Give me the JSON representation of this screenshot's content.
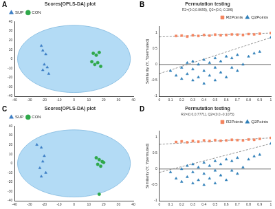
{
  "chart_data": [
    {
      "panel": "A",
      "type": "scatter",
      "title": "Scores(OPLS-DA) plot",
      "legend": "top-left",
      "grid": false,
      "xlim": [
        -40,
        40
      ],
      "xticks": [
        -40,
        -30,
        -20,
        -10,
        0,
        10,
        20,
        30,
        40
      ],
      "ylim": [
        -40,
        40
      ],
      "yticks": [
        -40,
        -30,
        -20,
        -10,
        0,
        10,
        20,
        30,
        40
      ],
      "ellipse": {
        "center": [
          0,
          0
        ],
        "radii": [
          38,
          36
        ],
        "color": "#b3dbf5"
      },
      "series": [
        {
          "name": "SUP",
          "color": "#3b7dc4",
          "marker": "triangle",
          "x": [
            -22,
            -21,
            -19,
            -20,
            -18,
            -21,
            -17
          ],
          "values": [
            14,
            9,
            5,
            -6,
            -9,
            -12,
            -16
          ]
        },
        {
          "name": "CON",
          "color": "#2fa84a",
          "marker": "circle",
          "x": [
            13,
            15,
            17,
            12,
            16,
            14,
            18
          ],
          "values": [
            6,
            4,
            7,
            -3,
            -4,
            -6,
            -8
          ]
        }
      ]
    },
    {
      "panel": "B",
      "type": "scatter",
      "title": "Permutation testing",
      "subtitle": "R2=(0.0,0.8699), Q2=(0.0,-0.286)",
      "y_label": "Similarity (Y, Ypermuted)",
      "legend": "top-right",
      "grid": false,
      "xlim": [
        0,
        1
      ],
      "xticks": [
        0,
        0.1,
        0.2,
        0.3,
        0.4,
        0.5,
        0.6,
        0.7,
        0.8,
        0.9,
        1
      ],
      "ylim": [
        -1,
        1.2
      ],
      "yticks": [
        -1,
        -0.5,
        0,
        0.5,
        1
      ],
      "hline": 0,
      "trend_lines": [
        {
          "color": "#777777",
          "line_style": "dashed",
          "x": [
            0,
            1
          ],
          "values": [
            0.8699,
            0.99
          ]
        },
        {
          "color": "#777777",
          "line_style": "dashed",
          "x": [
            0,
            1
          ],
          "values": [
            -0.286,
            0.85
          ]
        }
      ],
      "series": [
        {
          "name": "R2Points",
          "color": "#f4845f",
          "marker": "rect",
          "x": [
            0.15,
            0.2,
            0.25,
            0.3,
            0.35,
            0.4,
            0.45,
            0.5,
            0.55,
            0.6,
            0.65,
            0.7,
            0.75,
            0.8,
            0.85,
            0.9,
            1.0
          ],
          "values": [
            0.9,
            0.91,
            0.88,
            0.92,
            0.9,
            0.93,
            0.91,
            0.94,
            0.92,
            0.93,
            0.95,
            0.94,
            0.93,
            0.96,
            0.95,
            0.97,
            0.99
          ]
        },
        {
          "name": "Q2Points",
          "color": "#2f7fb8",
          "marker": "triangle",
          "x": [
            0.1,
            0.15,
            0.2,
            0.2,
            0.25,
            0.25,
            0.3,
            0.3,
            0.3,
            0.35,
            0.35,
            0.4,
            0.4,
            0.4,
            0.45,
            0.45,
            0.5,
            0.5,
            0.5,
            0.55,
            0.55,
            0.6,
            0.6,
            0.65,
            0.65,
            0.7,
            0.7,
            0.75,
            0.8,
            0.85,
            0.9,
            1.0
          ],
          "values": [
            -0.2,
            -0.35,
            -0.1,
            -0.45,
            0.05,
            -0.3,
            -0.5,
            -0.15,
            0.1,
            -0.4,
            0.0,
            -0.6,
            -0.2,
            0.15,
            -0.35,
            0.05,
            -0.5,
            -0.1,
            0.2,
            -0.25,
            0.1,
            -0.4,
            0.25,
            -0.1,
            0.2,
            -0.2,
            0.3,
            0.0,
            0.25,
            0.35,
            0.4,
            0.85
          ]
        }
      ]
    },
    {
      "panel": "C",
      "type": "scatter",
      "title": "Scores(OPLS-DA) plot",
      "legend": "top-left",
      "grid": false,
      "xlim": [
        -40,
        40
      ],
      "xticks": [
        -40,
        -30,
        -20,
        -10,
        0,
        10,
        20,
        30,
        40
      ],
      "ylim": [
        -40,
        40
      ],
      "yticks": [
        -40,
        -30,
        -20,
        -10,
        0,
        10,
        20,
        30,
        40
      ],
      "ellipse": {
        "center": [
          0,
          0
        ],
        "radii": [
          38,
          36
        ],
        "color": "#b3dbf5"
      },
      "series": [
        {
          "name": "SUP",
          "color": "#3b7dc4",
          "marker": "triangle",
          "x": [
            -25,
            -22,
            -20,
            -21,
            -23,
            -19,
            -22
          ],
          "values": [
            20,
            17,
            8,
            2,
            -5,
            -10,
            -14
          ]
        },
        {
          "name": "CON",
          "color": "#2fa84a",
          "marker": "circle",
          "x": [
            15,
            17,
            19,
            16,
            18,
            20,
            17
          ],
          "values": [
            6,
            4,
            2,
            -1,
            -3,
            1,
            -33
          ]
        }
      ]
    },
    {
      "panel": "D",
      "type": "scatter",
      "title": "Permutation testing",
      "subtitle": "R2=(0.0,0.7771), Q2=(0.0,-0.1075)",
      "y_label": "Similarity (Y, Ypermuted)",
      "legend": "top-right",
      "grid": false,
      "xlim": [
        0,
        1
      ],
      "xticks": [
        0,
        0.1,
        0.2,
        0.3,
        0.4,
        0.5,
        0.6,
        0.7,
        0.8,
        0.9,
        1
      ],
      "ylim": [
        -1,
        1.2
      ],
      "yticks": [
        -1,
        -0.5,
        0,
        0.5,
        1
      ],
      "hline": 0,
      "trend_lines": [
        {
          "color": "#777777",
          "line_style": "dashed",
          "x": [
            0,
            1
          ],
          "values": [
            0.7771,
            0.98
          ]
        },
        {
          "color": "#777777",
          "line_style": "dashed",
          "x": [
            0,
            1
          ],
          "values": [
            -0.1075,
            0.8
          ]
        }
      ],
      "series": [
        {
          "name": "R2Points",
          "color": "#f4845f",
          "marker": "rect",
          "x": [
            0.15,
            0.2,
            0.25,
            0.3,
            0.35,
            0.4,
            0.45,
            0.5,
            0.55,
            0.6,
            0.65,
            0.7,
            0.75,
            0.8,
            0.85,
            0.9,
            1.0
          ],
          "values": [
            0.85,
            0.87,
            0.84,
            0.88,
            0.86,
            0.9,
            0.88,
            0.91,
            0.89,
            0.9,
            0.92,
            0.91,
            0.9,
            0.93,
            0.92,
            0.95,
            0.98
          ]
        },
        {
          "name": "Q2Points",
          "color": "#2f7fb8",
          "marker": "triangle",
          "x": [
            0.1,
            0.15,
            0.2,
            0.2,
            0.25,
            0.25,
            0.3,
            0.3,
            0.3,
            0.35,
            0.35,
            0.4,
            0.4,
            0.4,
            0.45,
            0.45,
            0.5,
            0.5,
            0.5,
            0.55,
            0.55,
            0.6,
            0.6,
            0.65,
            0.65,
            0.7,
            0.7,
            0.75,
            0.8,
            0.85,
            0.9,
            1.0
          ],
          "values": [
            -0.1,
            -0.3,
            0.0,
            -0.4,
            0.1,
            -0.25,
            -0.45,
            -0.1,
            0.15,
            -0.35,
            0.05,
            -0.5,
            -0.15,
            0.2,
            -0.3,
            0.1,
            -0.45,
            -0.05,
            0.25,
            -0.2,
            0.15,
            -0.35,
            0.3,
            -0.05,
            0.25,
            -0.15,
            0.35,
            0.05,
            0.3,
            0.4,
            0.45,
            0.8
          ]
        }
      ]
    }
  ]
}
